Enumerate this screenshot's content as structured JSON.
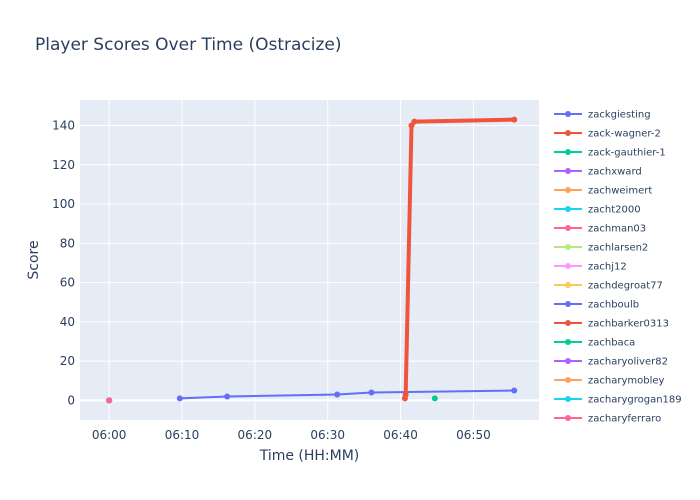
{
  "chart_data": {
    "type": "line",
    "title": "Player Scores Over Time (Ostracize)",
    "xlabel": "Time (HH:MM)",
    "ylabel": "Score",
    "x_ticks": [
      "06:00",
      "06:10",
      "06:20",
      "06:30",
      "06:40",
      "06:50"
    ],
    "y_ticks": [
      0,
      20,
      40,
      60,
      80,
      100,
      120,
      140
    ],
    "xlim": [
      -4,
      59
    ],
    "ylim": [
      -10,
      153
    ],
    "grid": true,
    "legend_position": "right",
    "series": [
      {
        "name": "zackgiesting",
        "color": "#636efa",
        "x": [
          9.7,
          16.2,
          31.3,
          36.0,
          55.6
        ],
        "y": [
          1,
          2,
          3,
          4,
          5
        ]
      },
      {
        "name": "zack-wagner-2",
        "color": "#EF553B",
        "x": [
          40.6,
          40.7,
          41.5,
          41.9,
          55.6
        ],
        "y": [
          1,
          3,
          140,
          142,
          143
        ]
      },
      {
        "name": "zack-gauthier-1",
        "color": "#00cc96",
        "x": [
          44.7
        ],
        "y": [
          1
        ]
      },
      {
        "name": "zachxward",
        "color": "#ab63fa",
        "x": [
          0
        ],
        "y": [
          0
        ]
      },
      {
        "name": "zachweimert",
        "color": "#FFA15A",
        "x": [
          0
        ],
        "y": [
          0
        ]
      },
      {
        "name": "zacht2000",
        "color": "#19d3f3",
        "x": [
          0
        ],
        "y": [
          0
        ]
      },
      {
        "name": "zachman03",
        "color": "#FF6692",
        "x": [
          0
        ],
        "y": [
          0
        ]
      },
      {
        "name": "zachlarsen2",
        "color": "#B6E880",
        "x": [
          0
        ],
        "y": [
          0
        ]
      },
      {
        "name": "zachj12",
        "color": "#FF97FF",
        "x": [
          0
        ],
        "y": [
          0
        ]
      },
      {
        "name": "zachdegroat77",
        "color": "#FECB52",
        "x": [
          0
        ],
        "y": [
          0
        ]
      },
      {
        "name": "zachboulb",
        "color": "#636efa",
        "x": [
          0
        ],
        "y": [
          0
        ]
      },
      {
        "name": "zachbarker0313",
        "color": "#EF553B",
        "x": [
          0
        ],
        "y": [
          0
        ]
      },
      {
        "name": "zachbaca",
        "color": "#00cc96",
        "x": [
          0
        ],
        "y": [
          0
        ]
      },
      {
        "name": "zacharyoliver82",
        "color": "#ab63fa",
        "x": [
          0
        ],
        "y": [
          0
        ]
      },
      {
        "name": "zacharymobley",
        "color": "#FFA15A",
        "x": [
          0
        ],
        "y": [
          0
        ]
      },
      {
        "name": "zacharygrogan189",
        "color": "#19d3f3",
        "x": [
          0
        ],
        "y": [
          0
        ]
      },
      {
        "name": "zacharyferraro",
        "color": "#FF6692",
        "x": [
          0
        ],
        "y": [
          0
        ]
      }
    ]
  }
}
